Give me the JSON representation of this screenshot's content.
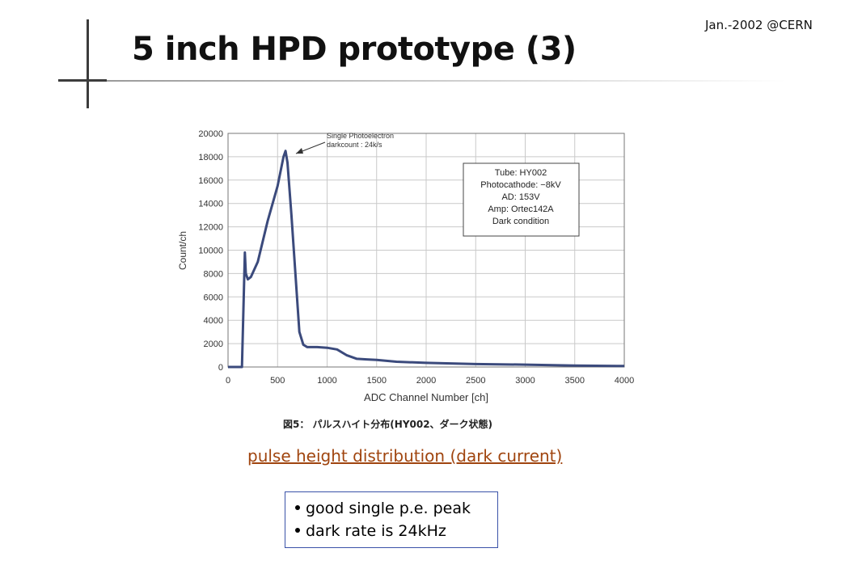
{
  "slide": {
    "title": "5 inch HPD prototype (3)",
    "date": "Jan.-2002 @CERN",
    "figure_caption": "図5： パルスハイト分布(HY002、ダーク状態)",
    "caption": "pulse height distribution (dark current)",
    "bullets": [
      "good single p.e. peak",
      "dark rate is 24kHz"
    ]
  },
  "chart_data": {
    "type": "line",
    "title": "",
    "xlabel": "ADC Channel Number [ch]",
    "ylabel": "Count/ch",
    "xlim": [
      0,
      4000
    ],
    "ylim": [
      0,
      20000
    ],
    "xticks": [
      "0",
      "500",
      "1000",
      "1500",
      "2000",
      "2500",
      "3000",
      "3500",
      "4000"
    ],
    "yticks": [
      "0",
      "2000",
      "4000",
      "6000",
      "8000",
      "10000",
      "12000",
      "14000",
      "16000",
      "18000",
      "20000"
    ],
    "grid": true,
    "line_color": "#3b4a7c",
    "annotations": [
      "Single Photoelectron",
      "darkcount : 24k/s"
    ],
    "infobox": [
      "Tube: HY002",
      "Photocathode: −8kV",
      "AD: 153V",
      "Amp: Ortec142A",
      "Dark condition"
    ],
    "series": [
      {
        "x": [
          0,
          140,
          160,
          170,
          180,
          200,
          230,
          300,
          400,
          500,
          560,
          580,
          600,
          640,
          680,
          720,
          760,
          800,
          900,
          1000,
          1100,
          1200,
          1300,
          1400,
          1500,
          1700,
          2000,
          2500,
          3000,
          3500,
          4000
        ],
        "y": [
          0,
          0,
          6500,
          9800,
          8000,
          7500,
          7700,
          9000,
          12500,
          15500,
          18000,
          18500,
          17500,
          13000,
          8000,
          3000,
          1900,
          1700,
          1700,
          1650,
          1500,
          1000,
          700,
          650,
          600,
          450,
          350,
          250,
          200,
          120,
          80
        ]
      }
    ]
  }
}
